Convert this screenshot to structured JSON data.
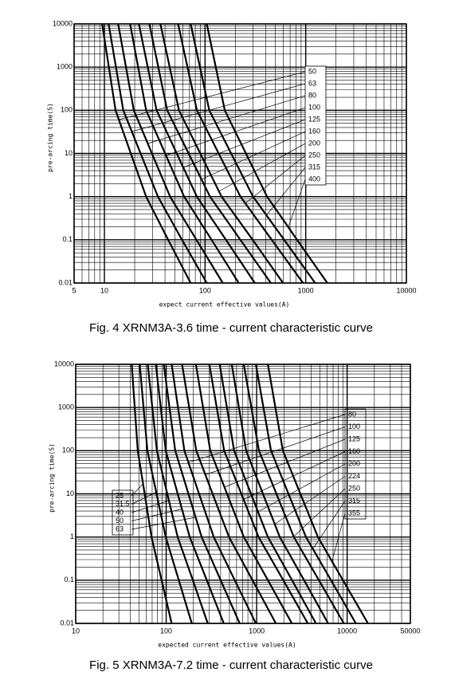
{
  "chart_data": [
    {
      "type": "line",
      "log_x": true,
      "log_y": true,
      "grid": true,
      "y_label": "pre-arcing time(S)",
      "x_label": "expect current effective values(A)",
      "caption": "Fig. 4 XRNM3A-3.6 time - current characteristic curve",
      "xlim": [
        5,
        10000
      ],
      "xticks": [
        5,
        10,
        100,
        1000,
        10000
      ],
      "ylim": [
        0.01,
        10000
      ],
      "yticks": [
        0.01,
        0.1,
        1,
        10,
        100,
        1000,
        10000
      ],
      "series": [
        {
          "name": "50",
          "color": "#000000",
          "x": [
            9.5,
            12.9,
            26,
            43,
            72
          ],
          "values": [
            10000,
            100,
            1,
            0.1,
            0.01
          ]
        },
        {
          "name": "63",
          "color": "#000000",
          "x": [
            11,
            15.4,
            34,
            59,
            104
          ],
          "values": [
            10000,
            100,
            1,
            0.1,
            0.01
          ]
        },
        {
          "name": "80",
          "color": "#000000",
          "x": [
            13.7,
            19.6,
            45,
            82,
            150
          ],
          "values": [
            10000,
            100,
            1,
            0.1,
            0.01
          ]
        },
        {
          "name": "100",
          "color": "#000000",
          "x": [
            18,
            26,
            62,
            116,
            216
          ],
          "values": [
            10000,
            100,
            1,
            0.1,
            0.01
          ]
        },
        {
          "name": "125",
          "color": "#000000",
          "x": [
            22,
            33,
            83,
            161,
            312
          ],
          "values": [
            10000,
            100,
            1,
            0.1,
            0.01
          ]
        },
        {
          "name": "160",
          "color": "#000000",
          "x": [
            28,
            42,
            112,
            224,
            450
          ],
          "values": [
            10000,
            100,
            1,
            0.1,
            0.01
          ]
        },
        {
          "name": "200",
          "color": "#000000",
          "x": [
            36,
            55,
            146,
            297,
            595
          ],
          "values": [
            10000,
            100,
            1,
            0.1,
            0.01
          ]
        },
        {
          "name": "250",
          "color": "#000000",
          "x": [
            54,
            83,
            225,
            459,
            940
          ],
          "values": [
            10000,
            100,
            1,
            0.1,
            0.01
          ]
        },
        {
          "name": "315",
          "color": "#000000",
          "x": [
            72,
            110,
            300,
            610,
            1240
          ],
          "values": [
            10000,
            100,
            1,
            0.1,
            0.01
          ]
        },
        {
          "name": "400",
          "color": "#000000",
          "x": [
            104,
            157,
            413,
            820,
            1640
          ],
          "values": [
            10000,
            100,
            1,
            0.1,
            0.01
          ]
        }
      ]
    },
    {
      "type": "line",
      "log_x": true,
      "log_y": true,
      "grid": true,
      "y_label": "pre-arcing time(S)",
      "x_label": "expected current effective values(A)",
      "caption": "Fig. 5 XRNM3A-7.2 time - current characteristic curve",
      "xlim": [
        10,
        50000
      ],
      "xticks": [
        10,
        100,
        1000,
        10000,
        50000
      ],
      "ylim": [
        0.01,
        10000
      ],
      "yticks": [
        0.01,
        0.1,
        1,
        10,
        100,
        1000,
        10000
      ],
      "series": [
        {
          "name": "25",
          "label_side": "left",
          "color": "#000000",
          "x": [
            41.6,
            48.5,
            69,
            89,
            115
          ],
          "values": [
            10000,
            100,
            1,
            0.1,
            0.01
          ]
        },
        {
          "name": "31.5",
          "label_side": "left",
          "color": "#000000",
          "x": [
            51,
            62,
            99,
            138,
            192
          ],
          "values": [
            10000,
            100,
            1,
            0.1,
            0.01
          ]
        },
        {
          "name": "40",
          "label_side": "left",
          "color": "#000000",
          "x": [
            62.6,
            79,
            134,
            197,
            288
          ],
          "values": [
            10000,
            100,
            1,
            0.1,
            0.01
          ]
        },
        {
          "name": "50",
          "label_side": "left",
          "color": "#000000",
          "x": [
            76.7,
            99,
            182,
            281,
            433
          ],
          "values": [
            10000,
            100,
            1,
            0.1,
            0.01
          ]
        },
        {
          "name": "63",
          "label_side": "left",
          "color": "#000000",
          "x": [
            94,
            126,
            247,
            400,
            650
          ],
          "values": [
            10000,
            100,
            1,
            0.1,
            0.01
          ]
        },
        {
          "name": "80",
          "label_side": "right",
          "color": "#000000",
          "x": [
            115,
            159,
            336,
            573,
            980
          ],
          "values": [
            10000,
            100,
            1,
            0.1,
            0.01
          ]
        },
        {
          "name": "100",
          "label_side": "right",
          "color": "#000000",
          "x": [
            150,
            215,
            495,
            900,
            1630
          ],
          "values": [
            10000,
            100,
            1,
            0.1,
            0.01
          ]
        },
        {
          "name": "125",
          "label_side": "right",
          "color": "#000000",
          "x": [
            213,
            307,
            722,
            1330,
            2450
          ],
          "values": [
            10000,
            100,
            1,
            0.1,
            0.01
          ]
        },
        {
          "name": "160",
          "label_side": "right",
          "color": "#000000",
          "x": [
            300,
            437,
            1050,
            1970,
            3680
          ],
          "values": [
            10000,
            100,
            1,
            0.1,
            0.01
          ]
        },
        {
          "name": "200",
          "label_side": "right",
          "color": "#000000",
          "x": [
            390,
            564,
            1330,
            2460,
            4520
          ],
          "values": [
            10000,
            100,
            1,
            0.1,
            0.01
          ]
        },
        {
          "name": "224",
          "label_side": "right",
          "color": "#000000",
          "x": [
            530,
            766,
            1800,
            3340,
            6170
          ],
          "values": [
            10000,
            100,
            1,
            0.1,
            0.01
          ]
        },
        {
          "name": "250",
          "label_side": "right",
          "color": "#000000",
          "x": [
            720,
            1060,
            2580,
            4870,
            9200
          ],
          "values": [
            10000,
            100,
            1,
            0.1,
            0.01
          ]
        },
        {
          "name": "315",
          "label_side": "right",
          "color": "#000000",
          "x": [
            980,
            1440,
            3510,
            6630,
            12500
          ],
          "values": [
            10000,
            100,
            1,
            0.1,
            0.01
          ]
        },
        {
          "name": "355",
          "label_side": "right",
          "color": "#000000",
          "x": [
            1330,
            1950,
            4760,
            9000,
            17000
          ],
          "values": [
            10000,
            100,
            1,
            0.1,
            0.01
          ]
        }
      ]
    }
  ]
}
